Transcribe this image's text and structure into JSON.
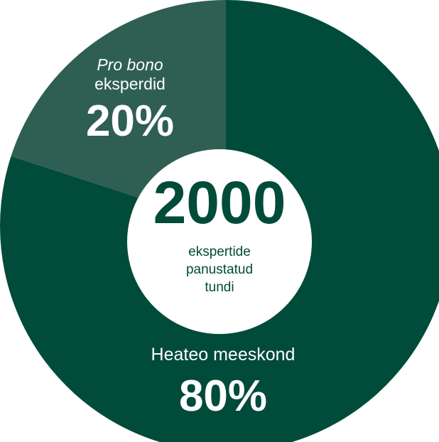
{
  "chart_data": {
    "type": "pie",
    "donut": true,
    "slices": [
      {
        "label": "Heateo meeskond",
        "value": 80,
        "value_label": "80%",
        "color": "#004b3a"
      },
      {
        "label_italic": "Pro bono",
        "label": "eksperdid",
        "value": 20,
        "value_label": "20%",
        "color": "#2e5f52"
      }
    ],
    "center": {
      "value": "2000",
      "text": [
        "ekspertide",
        "panustatud",
        "tundi"
      ]
    },
    "colors": {
      "center_fill": "#ffffff",
      "center_number": "#004b3a",
      "center_text": "#004b3a",
      "slice_text": "#ffffff"
    }
  }
}
